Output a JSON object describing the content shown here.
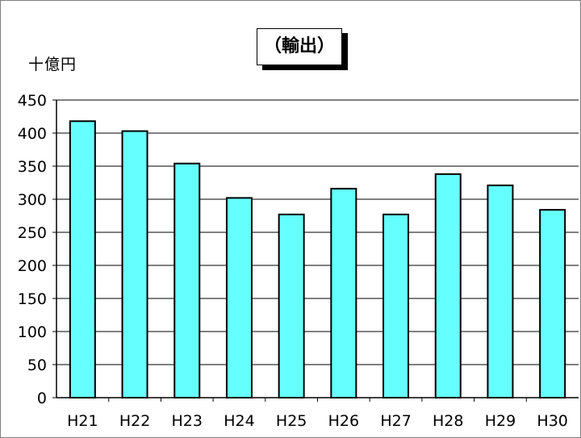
{
  "chart_data": {
    "type": "bar",
    "title": "（輸出）",
    "ylabel": "十億円",
    "xlabel": "",
    "categories": [
      "H21",
      "H22",
      "H23",
      "H24",
      "H25",
      "H26",
      "H27",
      "H28",
      "H29",
      "H30"
    ],
    "values": [
      418,
      403,
      354,
      302,
      277,
      316,
      277,
      338,
      321,
      284
    ],
    "ylim": [
      0,
      450
    ],
    "yticks": [
      "0",
      "50",
      "100",
      "150",
      "200",
      "250",
      "300",
      "350",
      "400",
      "450"
    ],
    "grid": true,
    "legend": "none",
    "colors": {
      "bar_fill": "#66FFFF",
      "bar_stroke": "#000000",
      "grid": "#000000"
    }
  }
}
